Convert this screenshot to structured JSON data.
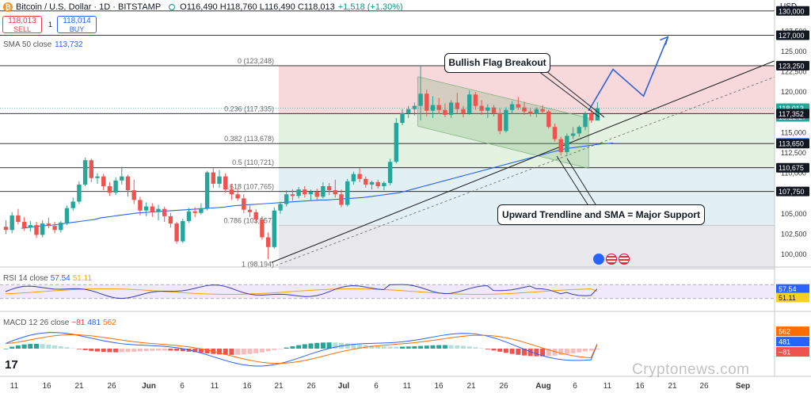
{
  "header": {
    "symbol": "Bitcoin / U.S. Dollar · 1D · BITSTAMP",
    "open": "O116,490",
    "high": "H118,760",
    "low": "L116,490",
    "close": "C118,013",
    "change": "+1,518 (+1.30%)",
    "currency": "USD"
  },
  "trade": {
    "sell_price": "118,013",
    "sell_label": "SELL",
    "buy_price": "118,014",
    "buy_label": "BUY",
    "spread": "1"
  },
  "sma": {
    "label": "SMA 50 close",
    "value": "113,732"
  },
  "annotations": {
    "flag": "Bullish Flag Breakout",
    "support": "Upward Trendline and SMA = Major Support"
  },
  "rsi_header": {
    "label": "RSI 14 close",
    "rsi": "57.54",
    "ma": "51.11"
  },
  "macd_header": {
    "label": "MACD 12 26 close",
    "hist": "−81",
    "macd": "481",
    "signal": "562"
  },
  "watermark": "Cryptonews.com",
  "colors": {
    "up": "#26a69a",
    "down": "#ef5350",
    "sma": "#2962ff",
    "fib_red": "#f7d5d9",
    "fib_green": "#dcefdc"
  },
  "chart_data": {
    "type": "candlestick",
    "price_axis": {
      "ticks": [
        100000,
        102500,
        105000,
        107500,
        110000,
        112500,
        115000,
        117500,
        120000,
        122500,
        125000,
        127500,
        130000
      ],
      "tick_labels": [
        "100,000",
        "102,500",
        "105,000",
        "107,500",
        "110,000",
        "112,500",
        "115,000",
        "117,500",
        "120,000",
        "122,500",
        "125,000",
        "127,500",
        "130,000"
      ],
      "range": [
        98194,
        131000
      ]
    },
    "time_axis": [
      "11",
      "16",
      "21",
      "26",
      "Jun",
      "6",
      "11",
      "16",
      "21",
      "26",
      "Jul",
      "6",
      "11",
      "16",
      "21",
      "26",
      "Aug",
      "6",
      "11",
      "16",
      "21",
      "26",
      "Sep"
    ],
    "price_tags": [
      {
        "label": "130,000",
        "value": 130000,
        "style": "dark"
      },
      {
        "label": "127,000",
        "value": 127000,
        "style": "dark"
      },
      {
        "label": "123,250",
        "value": 123250,
        "style": "dark"
      },
      {
        "label": "118,013",
        "value": 118013,
        "style": "green"
      },
      {
        "label": "13:22:27",
        "value": 117700,
        "style": "green-sub"
      },
      {
        "label": "117,352",
        "value": 117352,
        "style": "dark"
      },
      {
        "label": "113,732",
        "value": 113732,
        "style": "blue"
      },
      {
        "label": "113,650",
        "value": 113650,
        "style": "dark"
      },
      {
        "label": "110,675",
        "value": 110675,
        "style": "dark"
      },
      {
        "label": "107,750",
        "value": 107750,
        "style": "dark"
      }
    ],
    "horizontal_levels": [
      130000,
      127000,
      123250,
      117352,
      113650,
      110675,
      107750
    ],
    "fibonacci": [
      {
        "label": "0 (123,248)",
        "value": 123248
      },
      {
        "label": "0.236 (117,335)",
        "value": 117335
      },
      {
        "label": "0.382 (113,678)",
        "value": 113678
      },
      {
        "label": "0.5 (110,721)",
        "value": 110721
      },
      {
        "label": "0.618 (107,765)",
        "value": 107765
      },
      {
        "label": "0.786 (103,557)",
        "value": 103557
      },
      {
        "label": "1 (98,194)",
        "value": 98194
      }
    ],
    "candles": [
      {
        "o": 103400,
        "h": 104200,
        "l": 102500,
        "c": 103000
      },
      {
        "o": 103000,
        "h": 105200,
        "l": 102600,
        "c": 104800
      },
      {
        "o": 104800,
        "h": 105600,
        "l": 103700,
        "c": 104000
      },
      {
        "o": 104000,
        "h": 104600,
        "l": 102900,
        "c": 103300
      },
      {
        "o": 103300,
        "h": 104100,
        "l": 102800,
        "c": 103600
      },
      {
        "o": 103600,
        "h": 104000,
        "l": 102000,
        "c": 102400
      },
      {
        "o": 102400,
        "h": 104200,
        "l": 102100,
        "c": 103800
      },
      {
        "o": 103800,
        "h": 104500,
        "l": 103200,
        "c": 103500
      },
      {
        "o": 103500,
        "h": 104000,
        "l": 102600,
        "c": 103000
      },
      {
        "o": 103000,
        "h": 104100,
        "l": 102700,
        "c": 103900
      },
      {
        "o": 103900,
        "h": 106000,
        "l": 103600,
        "c": 105700
      },
      {
        "o": 105700,
        "h": 107000,
        "l": 105400,
        "c": 106500
      },
      {
        "o": 106500,
        "h": 109000,
        "l": 106200,
        "c": 108600
      },
      {
        "o": 108600,
        "h": 111900,
        "l": 108400,
        "c": 111600
      },
      {
        "o": 111600,
        "h": 111800,
        "l": 108900,
        "c": 109400
      },
      {
        "o": 109400,
        "h": 110000,
        "l": 108700,
        "c": 109600
      },
      {
        "o": 109600,
        "h": 109900,
        "l": 107900,
        "c": 108400
      },
      {
        "o": 108400,
        "h": 108900,
        "l": 107200,
        "c": 107600
      },
      {
        "o": 107600,
        "h": 109500,
        "l": 107300,
        "c": 109100
      },
      {
        "o": 109100,
        "h": 110800,
        "l": 108600,
        "c": 109600
      },
      {
        "o": 109600,
        "h": 109800,
        "l": 107100,
        "c": 107900
      },
      {
        "o": 107900,
        "h": 109200,
        "l": 106200,
        "c": 106700
      },
      {
        "o": 106700,
        "h": 107100,
        "l": 104800,
        "c": 105400
      },
      {
        "o": 105400,
        "h": 106400,
        "l": 104700,
        "c": 105900
      },
      {
        "o": 105900,
        "h": 106300,
        "l": 104600,
        "c": 105200
      },
      {
        "o": 105200,
        "h": 106100,
        "l": 104200,
        "c": 105600
      },
      {
        "o": 105600,
        "h": 105900,
        "l": 104000,
        "c": 104700
      },
      {
        "o": 104700,
        "h": 105100,
        "l": 103300,
        "c": 103800
      },
      {
        "o": 103800,
        "h": 104000,
        "l": 101300,
        "c": 101600
      },
      {
        "o": 101600,
        "h": 104400,
        "l": 101400,
        "c": 104100
      },
      {
        "o": 104100,
        "h": 105700,
        "l": 103900,
        "c": 105300
      },
      {
        "o": 105300,
        "h": 105800,
        "l": 104600,
        "c": 105100
      },
      {
        "o": 105100,
        "h": 106300,
        "l": 104900,
        "c": 105700
      },
      {
        "o": 105700,
        "h": 110300,
        "l": 105400,
        "c": 110100
      },
      {
        "o": 110100,
        "h": 110600,
        "l": 108200,
        "c": 108700
      },
      {
        "o": 108700,
        "h": 110400,
        "l": 108200,
        "c": 109600
      },
      {
        "o": 109600,
        "h": 110000,
        "l": 107600,
        "c": 108000
      },
      {
        "o": 108000,
        "h": 108700,
        "l": 106700,
        "c": 107400
      },
      {
        "o": 107400,
        "h": 108100,
        "l": 106600,
        "c": 106900
      },
      {
        "o": 106900,
        "h": 107400,
        "l": 105100,
        "c": 105500
      },
      {
        "o": 105500,
        "h": 106000,
        "l": 104600,
        "c": 105200
      },
      {
        "o": 105200,
        "h": 105600,
        "l": 103800,
        "c": 104300
      },
      {
        "o": 104300,
        "h": 104700,
        "l": 101800,
        "c": 102100
      },
      {
        "o": 102100,
        "h": 102700,
        "l": 99400,
        "c": 100900
      },
      {
        "o": 100900,
        "h": 105800,
        "l": 100700,
        "c": 105400
      },
      {
        "o": 105400,
        "h": 106500,
        "l": 105000,
        "c": 106200
      },
      {
        "o": 106200,
        "h": 107900,
        "l": 105900,
        "c": 107400
      },
      {
        "o": 107400,
        "h": 108000,
        "l": 106600,
        "c": 107200
      },
      {
        "o": 107200,
        "h": 108300,
        "l": 106900,
        "c": 108000
      },
      {
        "o": 108000,
        "h": 108400,
        "l": 107000,
        "c": 107400
      },
      {
        "o": 107400,
        "h": 108000,
        "l": 106600,
        "c": 107700
      },
      {
        "o": 107700,
        "h": 108100,
        "l": 106700,
        "c": 107100
      },
      {
        "o": 107100,
        "h": 108900,
        "l": 106900,
        "c": 108400
      },
      {
        "o": 108400,
        "h": 108800,
        "l": 107300,
        "c": 107900
      },
      {
        "o": 107900,
        "h": 109200,
        "l": 107000,
        "c": 107400
      },
      {
        "o": 107400,
        "h": 108000,
        "l": 105800,
        "c": 106100
      },
      {
        "o": 106100,
        "h": 109300,
        "l": 105900,
        "c": 109000
      },
      {
        "o": 109000,
        "h": 110200,
        "l": 108600,
        "c": 109900
      },
      {
        "o": 109900,
        "h": 110600,
        "l": 108900,
        "c": 109300
      },
      {
        "o": 109300,
        "h": 109600,
        "l": 108200,
        "c": 108600
      },
      {
        "o": 108600,
        "h": 109100,
        "l": 108000,
        "c": 108900
      },
      {
        "o": 108900,
        "h": 109200,
        "l": 108100,
        "c": 108400
      },
      {
        "o": 108400,
        "h": 109000,
        "l": 107900,
        "c": 108800
      },
      {
        "o": 108800,
        "h": 111800,
        "l": 108500,
        "c": 111400
      },
      {
        "o": 111400,
        "h": 116800,
        "l": 111200,
        "c": 116200
      },
      {
        "o": 116200,
        "h": 117900,
        "l": 115900,
        "c": 117400
      },
      {
        "o": 117400,
        "h": 118300,
        "l": 116800,
        "c": 117900
      },
      {
        "o": 117900,
        "h": 118700,
        "l": 117100,
        "c": 118300
      },
      {
        "o": 118300,
        "h": 123248,
        "l": 116500,
        "c": 119800
      },
      {
        "o": 119800,
        "h": 120300,
        "l": 117000,
        "c": 117700
      },
      {
        "o": 117700,
        "h": 119500,
        "l": 116800,
        "c": 118400
      },
      {
        "o": 118400,
        "h": 119300,
        "l": 117300,
        "c": 117800
      },
      {
        "o": 117800,
        "h": 118600,
        "l": 116900,
        "c": 117200
      },
      {
        "o": 117200,
        "h": 119000,
        "l": 116800,
        "c": 118700
      },
      {
        "o": 118700,
        "h": 119900,
        "l": 117400,
        "c": 117900
      },
      {
        "o": 117900,
        "h": 118300,
        "l": 116900,
        "c": 117400
      },
      {
        "o": 117400,
        "h": 120200,
        "l": 117200,
        "c": 119700
      },
      {
        "o": 119700,
        "h": 120000,
        "l": 117800,
        "c": 118300
      },
      {
        "o": 118300,
        "h": 119000,
        "l": 117200,
        "c": 117700
      },
      {
        "o": 117700,
        "h": 118500,
        "l": 116800,
        "c": 118100
      },
      {
        "o": 118100,
        "h": 118400,
        "l": 117000,
        "c": 117400
      },
      {
        "o": 117400,
        "h": 118000,
        "l": 114800,
        "c": 115200
      },
      {
        "o": 115200,
        "h": 118100,
        "l": 115000,
        "c": 117800
      },
      {
        "o": 117800,
        "h": 118900,
        "l": 117300,
        "c": 118500
      },
      {
        "o": 118500,
        "h": 119400,
        "l": 117800,
        "c": 118100
      },
      {
        "o": 118100,
        "h": 118800,
        "l": 117200,
        "c": 117600
      },
      {
        "o": 117600,
        "h": 118000,
        "l": 117000,
        "c": 117300
      },
      {
        "o": 117300,
        "h": 118100,
        "l": 116900,
        "c": 117900
      },
      {
        "o": 117900,
        "h": 118400,
        "l": 117300,
        "c": 117600
      },
      {
        "o": 117600,
        "h": 117800,
        "l": 115500,
        "c": 115700
      },
      {
        "o": 115700,
        "h": 116100,
        "l": 113900,
        "c": 114200
      },
      {
        "o": 114200,
        "h": 114500,
        "l": 112200,
        "c": 112600
      },
      {
        "o": 112600,
        "h": 114900,
        "l": 112100,
        "c": 114600
      },
      {
        "o": 114600,
        "h": 115700,
        "l": 114200,
        "c": 114900
      },
      {
        "o": 114900,
        "h": 115900,
        "l": 114500,
        "c": 115700
      },
      {
        "o": 115700,
        "h": 117600,
        "l": 115300,
        "c": 117300
      },
      {
        "o": 117300,
        "h": 117900,
        "l": 116200,
        "c": 116500
      },
      {
        "o": 116490,
        "h": 118760,
        "l": 116490,
        "c": 118013
      }
    ],
    "sma50": [
      103200,
      103300,
      103400,
      103500,
      103550,
      103600,
      103700,
      103800,
      103900,
      104000,
      104100,
      104200,
      104300,
      104500,
      104600,
      104700,
      104800,
      104900,
      105000,
      105100,
      105150,
      105200,
      105250,
      105300,
      105350,
      105400,
      105450,
      105500,
      105550,
      105600,
      105650,
      105700,
      105750,
      105800,
      105900,
      106000,
      106050,
      106100,
      106150,
      106200,
      106250,
      106300,
      106350,
      106400,
      106450,
      106500,
      106550,
      106600,
      106650,
      106700,
      106700,
      106750,
      106800,
      106850,
      106900,
      106950,
      107000,
      107100,
      107200,
      107300,
      107400,
      107500,
      107600,
      107800,
      108000,
      108200,
      108400,
      108600,
      108800,
      109000,
      109200,
      109400,
      109600,
      109800,
      110000,
      110200,
      110400,
      110600,
      110800,
      111000,
      111200,
      111400,
      111600,
      111800,
      112000,
      112200,
      112400,
      112600,
      112800,
      113000,
      113100,
      113200,
      113300,
      113400,
      113500,
      113600,
      113650,
      113732
    ],
    "flag_channel": {
      "top": [
        [
          68,
          121900
        ],
        [
          96,
          116800
        ]
      ],
      "bottom": [
        [
          68,
          115800
        ],
        [
          96,
          110600
        ]
      ]
    },
    "trendline": [
      [
        44,
        99000
      ],
      [
        127,
        124000
      ]
    ],
    "projection": [
      [
        96,
        117700
      ],
      [
        100,
        122800
      ],
      [
        105,
        119500
      ],
      [
        109,
        126800
      ]
    ],
    "rsi": {
      "last": 57.54,
      "ma": 51.11,
      "bands": [
        30,
        70
      ]
    },
    "macd": {
      "hist_last": -81,
      "macd_last": 481,
      "signal_last": 562,
      "axis_ticks": [
        "2,000",
        "1,000",
        "0",
        "−81"
      ]
    }
  }
}
